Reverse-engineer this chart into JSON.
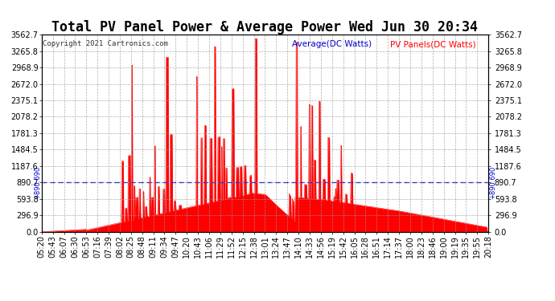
{
  "title": "Total PV Panel Power & Average Power Wed Jun 30 20:34",
  "copyright": "Copyright 2021 Cartronics.com",
  "legend_average": "Average(DC Watts)",
  "legend_pv": "PV Panels(DC Watts)",
  "average_value": 890.69,
  "average_label": "890.690",
  "ymax": 3562.7,
  "ymin": 0.0,
  "yticks": [
    0.0,
    296.9,
    593.8,
    890.7,
    1187.6,
    1484.5,
    1781.3,
    2078.2,
    2375.1,
    2672.0,
    2968.9,
    3265.8,
    3562.7
  ],
  "ytick_labels": [
    "0.0",
    "296.9",
    "593.8",
    "890.7",
    "1187.6",
    "1484.5",
    "1781.3",
    "2078.2",
    "2375.1",
    "2672.0",
    "2968.9",
    "3265.8",
    "3562.7"
  ],
  "color_fill": "#ff0000",
  "color_average": "#0000cc",
  "color_title": "#000000",
  "color_copyright": "#333333",
  "color_legend_avg": "#0000cc",
  "color_legend_pv": "#ff0000",
  "background_color": "#ffffff",
  "grid_color": "#999999",
  "title_fontsize": 12,
  "axis_fontsize": 7,
  "xtick_labels": [
    "05:20",
    "05:43",
    "06:07",
    "06:30",
    "06:53",
    "07:16",
    "07:39",
    "08:02",
    "08:25",
    "08:48",
    "09:11",
    "09:34",
    "09:47",
    "10:20",
    "10:43",
    "11:06",
    "11:29",
    "11:52",
    "12:15",
    "12:38",
    "13:01",
    "13:24",
    "13:47",
    "14:10",
    "14:33",
    "14:56",
    "15:19",
    "15:42",
    "16:05",
    "16:28",
    "16:51",
    "17:14",
    "17:37",
    "18:00",
    "18:23",
    "18:46",
    "19:00",
    "19:19",
    "19:35",
    "19:55",
    "20:18"
  ]
}
